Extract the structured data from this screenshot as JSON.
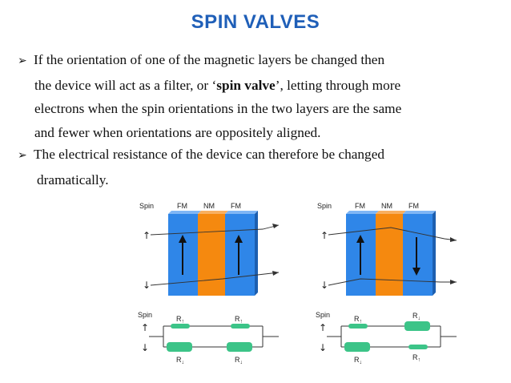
{
  "title": "SPIN VALVES",
  "bullet1": {
    "marker": "➢",
    "line1": "If the orientation of one of the magnetic layers  be changed then",
    "line2": "the device will act as a filter, or ‘",
    "line2_bold": "spin valve",
    "line2_end": "’, letting through more",
    "line3": "electrons when the spin orientations in the two layers are the same",
    "line4": "and fewer when orientations are oppositely aligned."
  },
  "bullet2": {
    "marker": "➢",
    "line1": "The electrical resistance of the device can therefore be changed",
    "line2": "dramatically."
  },
  "diagram_labels": {
    "spin": "Spin",
    "fm": "FM",
    "nm": "NM",
    "up_arrow": "↑",
    "down_arrow": "↓",
    "r": "R"
  },
  "colors": {
    "title": "#1f5fb8",
    "fm_layer": "#2f86e8",
    "nm_layer": "#f5890f",
    "resistor": "#3cc488"
  }
}
